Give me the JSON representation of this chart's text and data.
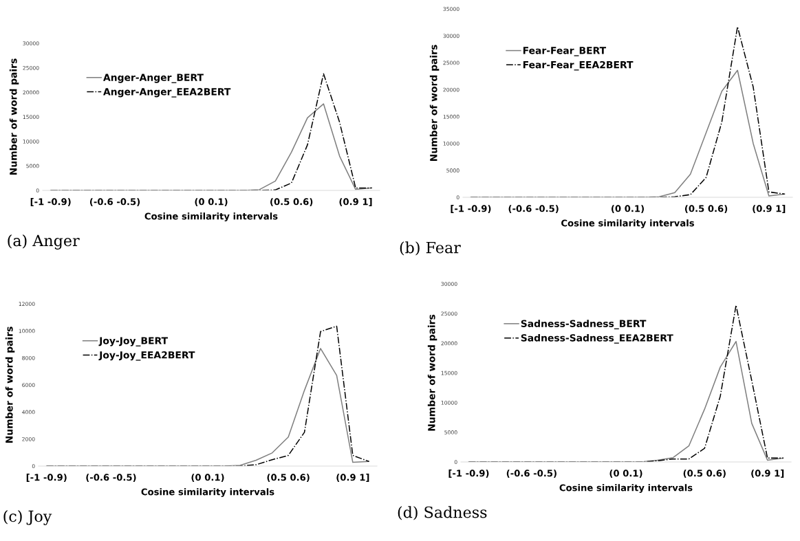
{
  "chart_data": [
    {
      "type": "line",
      "xlabel": "Cosine similarity intervals",
      "ylabel": "Number of word pairs",
      "annotations": [
        "(a) Anger"
      ],
      "categories": [
        "[-1 -0.9)",
        null,
        null,
        null,
        "(-0.6 -0.5)",
        null,
        null,
        null,
        null,
        null,
        "(0 0.1)",
        null,
        null,
        null,
        null,
        "(0.5 0.6)",
        null,
        null,
        null,
        "(0.9 1]",
        null
      ],
      "series": [
        {
          "name": "Anger-Anger_BERT",
          "color": "#7f7f7f",
          "line_style": "solid",
          "values": [
            0,
            0,
            0,
            0,
            0,
            0,
            0,
            0,
            0,
            0,
            0,
            0,
            0,
            150,
            1900,
            7800,
            14800,
            17650,
            7000,
            200,
            500
          ]
        },
        {
          "name": "Anger-Anger_EEA2BERT",
          "color": "#000000",
          "line_style": "dashdot",
          "values": [
            0,
            0,
            0,
            0,
            0,
            0,
            0,
            0,
            0,
            0,
            0,
            0,
            0,
            0,
            100,
            1500,
            9300,
            23800,
            13900,
            500,
            500
          ]
        }
      ],
      "ylim": [
        0,
        30000
      ],
      "yticks": [
        0,
        5000,
        10000,
        15000,
        20000,
        25000,
        30000
      ],
      "grid": false,
      "legend": "top left"
    },
    {
      "type": "line",
      "xlabel": "Cosine similarity intervals",
      "ylabel": "Number of word pairs",
      "annotations": [
        "(b) Fear"
      ],
      "categories": [
        "[-1 -0.9)",
        null,
        null,
        null,
        "(-0.6 -0.5)",
        null,
        null,
        null,
        null,
        null,
        "(0 0.1)",
        null,
        null,
        null,
        null,
        "(0.5 0.6)",
        null,
        null,
        null,
        "(0.9 1]",
        null
      ],
      "series": [
        {
          "name": "Fear-Fear_BERT",
          "color": "#7f7f7f",
          "line_style": "solid",
          "values": [
            0,
            0,
            0,
            0,
            0,
            0,
            0,
            0,
            0,
            0,
            0,
            0,
            100,
            850,
            4300,
            12000,
            19700,
            23600,
            10000,
            250,
            600
          ]
        },
        {
          "name": "Fear-Fear_EEA2BERT",
          "color": "#000000",
          "line_style": "dashdot",
          "values": [
            0,
            0,
            0,
            0,
            0,
            0,
            0,
            0,
            0,
            0,
            0,
            0,
            0,
            100,
            500,
            3700,
            14000,
            31700,
            20500,
            1000,
            600
          ]
        }
      ],
      "ylim": [
        0,
        35000
      ],
      "yticks": [
        0,
        5000,
        10000,
        15000,
        20000,
        25000,
        30000,
        35000
      ],
      "grid": false,
      "legend": "top left"
    },
    {
      "type": "line",
      "xlabel": "Cosine similarity intervals",
      "ylabel": "Number of word pairs",
      "annotations": [
        "(c) Joy"
      ],
      "categories": [
        "[-1 -0.9)",
        null,
        null,
        null,
        "(-0.6 -0.5)",
        null,
        null,
        null,
        null,
        null,
        "(0 0.1)",
        null,
        null,
        null,
        null,
        "(0.5 0.6)",
        null,
        null,
        null,
        "(0.9 1]",
        null
      ],
      "series": [
        {
          "name": "Joy-Joy_BERT",
          "color": "#7f7f7f",
          "line_style": "solid",
          "values": [
            0,
            0,
            0,
            0,
            0,
            0,
            0,
            0,
            0,
            0,
            0,
            0,
            50,
            430,
            975,
            2150,
            5600,
            8700,
            6700,
            280,
            340
          ]
        },
        {
          "name": "Joy-Joy_EEA2BERT",
          "color": "#000000",
          "line_style": "dashdot",
          "values": [
            0,
            0,
            0,
            0,
            0,
            0,
            0,
            0,
            0,
            0,
            0,
            0,
            0,
            100,
            470,
            790,
            2500,
            9950,
            10350,
            790,
            340
          ]
        }
      ],
      "ylim": [
        0,
        12000
      ],
      "yticks": [
        0,
        2000,
        4000,
        6000,
        8000,
        10000,
        12000
      ],
      "grid": false,
      "legend": "top left"
    },
    {
      "type": "line",
      "xlabel": "Cosine similarity intervals",
      "ylabel": "Number of word pairs",
      "annotations": [
        "(d) Sadness"
      ],
      "categories": [
        "[-1 -0.9)",
        null,
        null,
        null,
        "(-0.6 -0.5)",
        null,
        null,
        null,
        null,
        null,
        "(0 0.1)",
        null,
        null,
        null,
        null,
        "(0.5 0.6)",
        null,
        null,
        null,
        "(0.9 1]",
        null
      ],
      "series": [
        {
          "name": "Sadness-Sadness_BERT",
          "color": "#7f7f7f",
          "line_style": "solid",
          "values": [
            0,
            0,
            0,
            0,
            0,
            0,
            0,
            0,
            0,
            0,
            0,
            0,
            300,
            730,
            2700,
            8900,
            16000,
            20300,
            6500,
            300,
            650
          ]
        },
        {
          "name": "Sadness-Sadness_EEA2BERT",
          "color": "#000000",
          "line_style": "dashdot",
          "values": [
            0,
            0,
            0,
            0,
            0,
            0,
            0,
            0,
            0,
            0,
            0,
            0,
            200,
            500,
            500,
            2300,
            11100,
            26400,
            13700,
            650,
            650
          ]
        }
      ],
      "ylim": [
        0,
        30000
      ],
      "yticks": [
        0,
        5000,
        10000,
        15000,
        20000,
        25000,
        30000
      ],
      "grid": false,
      "legend": "top left"
    }
  ]
}
